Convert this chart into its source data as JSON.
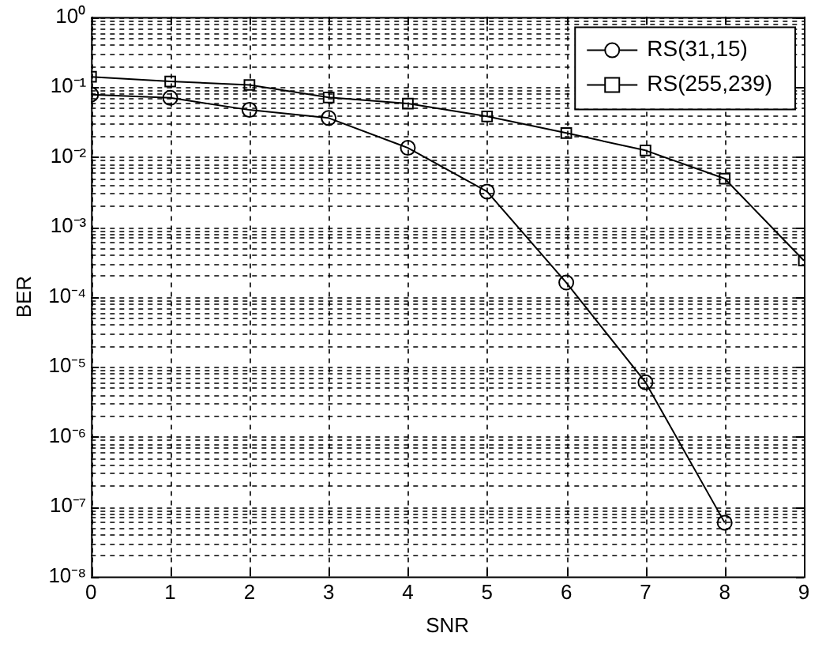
{
  "chart_data": {
    "type": "line",
    "xlabel": "SNR",
    "ylabel": "BER",
    "x": [
      0,
      1,
      2,
      3,
      4,
      5,
      6,
      7,
      8,
      9
    ],
    "series": [
      {
        "name": "RS(31,15)",
        "color": "#000000",
        "marker": "circle",
        "values": [
          0.078,
          0.07,
          0.047,
          0.036,
          0.0135,
          0.0032,
          0.00016,
          6e-06,
          5.9e-08,
          null
        ]
      },
      {
        "name": "RS(255,239)",
        "color": "#000000",
        "marker": "square",
        "values": [
          0.14,
          0.12,
          0.107,
          0.071,
          0.058,
          0.038,
          0.022,
          0.0124,
          0.0049,
          0.00033
        ]
      }
    ],
    "log": "y",
    "xlim": [
      0,
      9
    ],
    "xticks": [
      0,
      1,
      2,
      3,
      4,
      5,
      6,
      7,
      8,
      9
    ],
    "ylim": [
      1e-08,
      1
    ],
    "yticks": [
      {
        "value": 1e-08,
        "label": "10⁻⁸"
      },
      {
        "value": 1e-07,
        "label": "10⁻⁷"
      },
      {
        "value": 1e-06,
        "label": "10⁻⁶"
      },
      {
        "value": 1e-05,
        "label": "10⁻⁵"
      },
      {
        "value": 0.0001,
        "label": "10⁻⁴"
      },
      {
        "value": 0.001,
        "label": "10⁻³"
      },
      {
        "value": 0.01,
        "label": "10⁻²"
      },
      {
        "value": 0.1,
        "label": "10⁻¹"
      },
      {
        "value": 1,
        "label": "10⁰"
      }
    ],
    "grid": true,
    "legend": "top right",
    "line_style": "solid"
  }
}
